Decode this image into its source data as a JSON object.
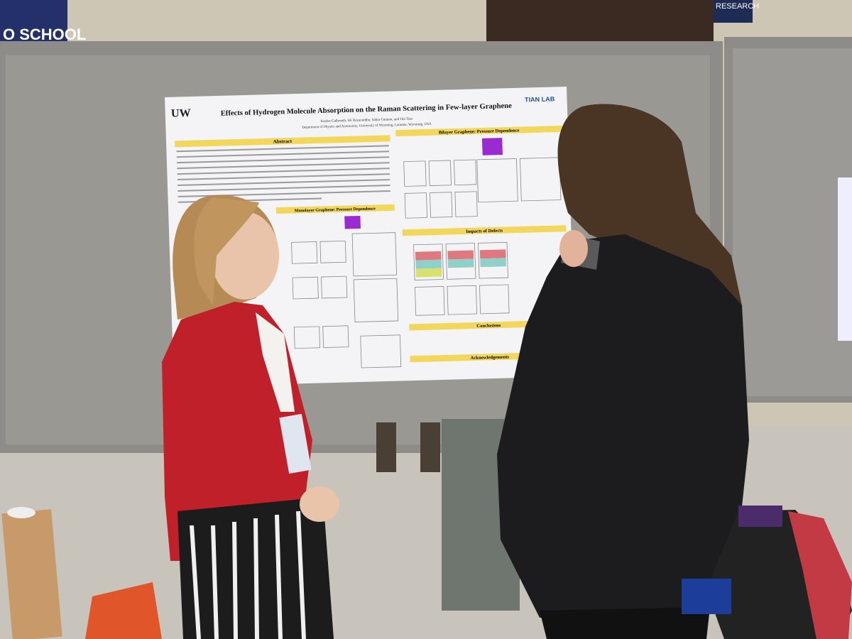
{
  "signs": {
    "left": "O SCHOOL",
    "right": "RESEARCH"
  },
  "poster": {
    "logo_left": "UW",
    "logo_right": "TIAN LAB",
    "title": "Effects of Hydrogen Molecule Absorption on the Raman Scattering in Few-layer Graphene",
    "authors": "Kaylee Galbreath, SK Rezaouddin, Sabin Gautam, and Jifa Tian",
    "affiliation": "Department of Physics and Astronomy, University of Wyoming, Laramie, Wyoming, USA",
    "sections": [
      "Abstract",
      "Monolayer Graphene: Pressure Dependence",
      "Bilayer Graphene: Pressure Dependence",
      "Impacts of Defects",
      "Conclusions",
      "Acknowledgements"
    ]
  }
}
